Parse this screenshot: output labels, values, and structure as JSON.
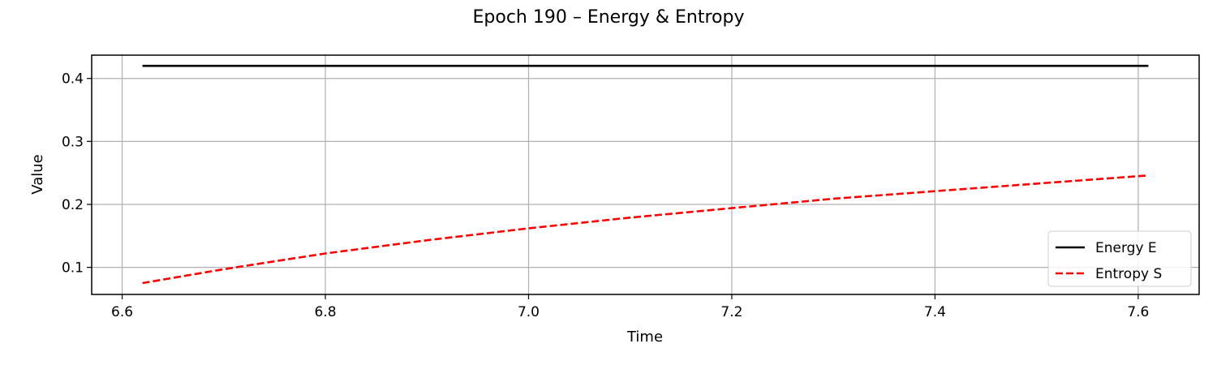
{
  "chart_data": {
    "type": "line",
    "title": "Epoch 190 – Energy & Entropy",
    "xlabel": "Time",
    "ylabel": "Value",
    "xlim": [
      6.57,
      7.66
    ],
    "ylim": [
      0.057,
      0.437
    ],
    "xticks": [
      6.6,
      6.8,
      7.0,
      7.2,
      7.4,
      7.6
    ],
    "xtick_labels": [
      "6.6",
      "6.8",
      "7.0",
      "7.2",
      "7.4",
      "7.6"
    ],
    "yticks": [
      0.1,
      0.2,
      0.3,
      0.4
    ],
    "ytick_labels": [
      "0.1",
      "0.2",
      "0.3",
      "0.4"
    ],
    "grid": true,
    "legend_position": "lower-right",
    "series": [
      {
        "name": "Energy E",
        "color": "#000000",
        "style": "solid",
        "x": [
          6.62,
          7.61
        ],
        "y": [
          0.42,
          0.42
        ]
      },
      {
        "name": "Entropy S",
        "color": "#ff0000",
        "style": "dashed",
        "x": [
          6.62,
          6.7,
          6.8,
          6.9,
          7.0,
          7.1,
          7.2,
          7.3,
          7.4,
          7.5,
          7.61
        ],
        "y": [
          0.075,
          0.097,
          0.122,
          0.143,
          0.162,
          0.179,
          0.194,
          0.209,
          0.221,
          0.233,
          0.246
        ]
      }
    ]
  }
}
